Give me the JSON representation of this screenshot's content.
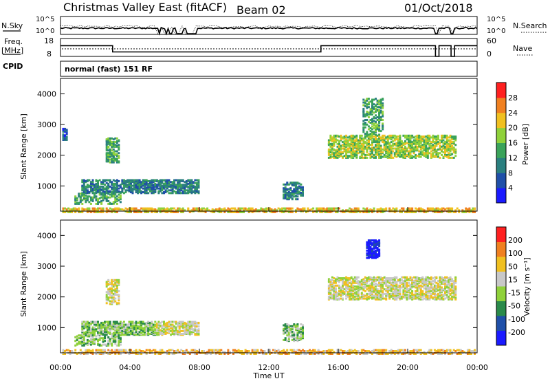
{
  "header": {
    "title": "Christmas Valley East (fitACF)",
    "beam": "Beam 02",
    "date": "01/Oct/2018"
  },
  "top_panels": {
    "nsky_label": "N.Sky",
    "nsearch_label": "N.Search",
    "noise_left_ticks": [
      "10^5",
      "10^0"
    ],
    "noise_right_ticks": [
      "10^5",
      "10^0"
    ],
    "freq_label": "Freq.",
    "freq_unit": "[MHz]",
    "freq_ticks": [
      "18",
      "8"
    ],
    "nave_label": "Nave",
    "nave_ticks": [
      "60",
      "0"
    ],
    "cpid_label": "CPID",
    "cpid_text": "normal (fast) 151 RF"
  },
  "power_panel": {
    "ylabel": "Slant Range [km]",
    "yticks": [
      "4000",
      "3000",
      "2000",
      "1000"
    ],
    "colorbar_label": "Power [dB]",
    "colorbar_ticks": [
      "28",
      "24",
      "20",
      "16",
      "12",
      "8",
      "4"
    ],
    "colors": [
      "#1a1aff",
      "#1f4fa8",
      "#2a7f7f",
      "#3aa35a",
      "#8fd13a",
      "#f0c020",
      "#f08020",
      "#ff2020"
    ]
  },
  "velocity_panel": {
    "ylabel": "Slant Range [km]",
    "yticks": [
      "4000",
      "3000",
      "2000",
      "1000"
    ],
    "colorbar_label": "Velocity [m s⁻¹]",
    "colorbar_ticks": [
      "200",
      "100",
      "50",
      "15",
      "-15",
      "-50",
      "-100",
      "-200"
    ],
    "colors": [
      "#1a1aff",
      "#1f4fa8",
      "#2a8a4a",
      "#8fd13a",
      "#c8c8c8",
      "#f0c020",
      "#f08020",
      "#ff2020"
    ]
  },
  "xaxis": {
    "label": "Time UT",
    "ticks": [
      "00:00",
      "04:00",
      "08:00",
      "12:00",
      "16:00",
      "20:00",
      "00:00"
    ]
  },
  "chart_data": [
    {
      "type": "line",
      "x_unit": "hours UT",
      "xlim": [
        0,
        24
      ],
      "series": [
        {
          "name": "N.Sky",
          "x": [
            0,
            5.6,
            5.7,
            6.0,
            6.1,
            6.2,
            6.4,
            6.6,
            7.0,
            7.2,
            7.8,
            8.0,
            21.6,
            21.8,
            22.5,
            22.7,
            24
          ],
          "y_level": "mid"
        }
      ]
    },
    {
      "type": "line",
      "xlim": [
        0,
        24
      ],
      "ylim": [
        8,
        18
      ],
      "series": [
        {
          "name": "Freq.",
          "x": [
            0,
            3,
            3,
            15,
            15,
            21.6,
            21.6,
            21.8,
            21.8,
            22.5,
            22.5,
            22.7,
            22.7,
            24
          ],
          "y": [
            14,
            14,
            10.5,
            10.5,
            14,
            14,
            8,
            8,
            14,
            14,
            8,
            8,
            14,
            14
          ]
        }
      ]
    },
    {
      "type": "heatmap",
      "name": "power",
      "xlim": [
        0,
        24
      ],
      "ylim": [
        180,
        4500
      ],
      "regions": [
        {
          "x": [
            0.1,
            23.9
          ],
          "y": [
            180,
            330
          ],
          "level": 5,
          "density": 0.55
        },
        {
          "x": [
            1.2,
            7.9
          ],
          "y": [
            800,
            1250
          ],
          "level": 2,
          "density": 0.6
        },
        {
          "x": [
            0.8,
            3.5
          ],
          "y": [
            450,
            800
          ],
          "level": 3,
          "density": 0.35
        },
        {
          "x": [
            2.6,
            3.4
          ],
          "y": [
            1800,
            2600
          ],
          "level": 3,
          "density": 0.5
        },
        {
          "x": [
            12.8,
            13.9
          ],
          "y": [
            600,
            1150
          ],
          "level": 2,
          "density": 0.5
        },
        {
          "x": [
            15.4,
            22.8
          ],
          "y": [
            1950,
            2700
          ],
          "level": 4,
          "density": 0.55
        },
        {
          "x": [
            17.4,
            18.6
          ],
          "y": [
            2700,
            3900
          ],
          "level": 3,
          "density": 0.4
        },
        {
          "x": [
            0.1,
            0.4
          ],
          "y": [
            2500,
            2900
          ],
          "level": 1,
          "density": 0.5
        }
      ]
    },
    {
      "type": "heatmap",
      "name": "velocity",
      "xlim": [
        0,
        24
      ],
      "ylim": [
        180,
        4500
      ],
      "regions": [
        {
          "x": [
            0.1,
            23.9
          ],
          "y": [
            180,
            330
          ],
          "level": 5,
          "density": 0.5
        },
        {
          "x": [
            1.2,
            5.4
          ],
          "y": [
            800,
            1250
          ],
          "level": 3,
          "density": 0.65
        },
        {
          "x": [
            5.4,
            7.9
          ],
          "y": [
            800,
            1250
          ],
          "level": 4,
          "density": 0.6
        },
        {
          "x": [
            0.8,
            3.5
          ],
          "y": [
            450,
            800
          ],
          "level": 3,
          "density": 0.4
        },
        {
          "x": [
            2.6,
            3.4
          ],
          "y": [
            1800,
            2600
          ],
          "level": 4,
          "density": 0.5
        },
        {
          "x": [
            12.8,
            13.9
          ],
          "y": [
            600,
            1150
          ],
          "level": 3,
          "density": 0.5
        },
        {
          "x": [
            15.4,
            22.8
          ],
          "y": [
            1950,
            2700
          ],
          "level": 4,
          "density": 0.55
        },
        {
          "x": [
            17.6,
            18.4
          ],
          "y": [
            3300,
            3900
          ],
          "level": 0,
          "density": 0.6
        }
      ]
    }
  ]
}
